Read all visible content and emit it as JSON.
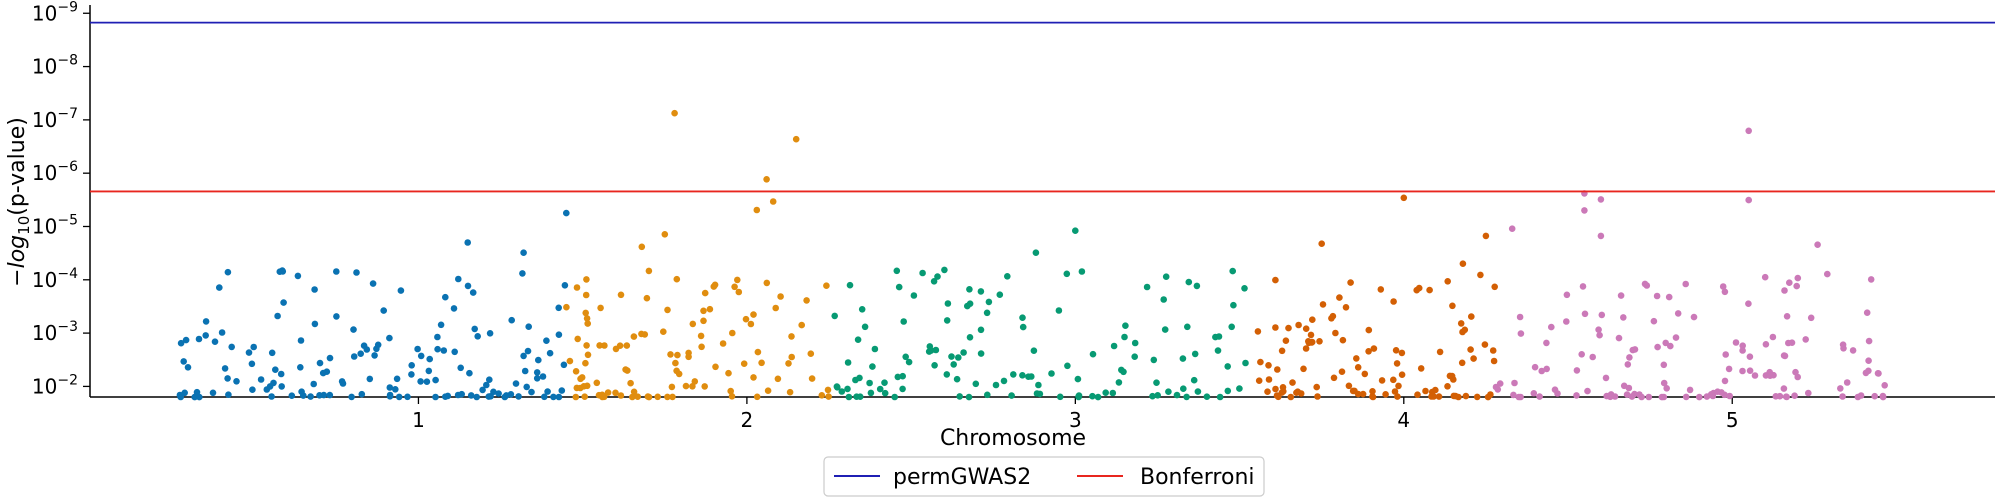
{
  "chart_data": {
    "type": "scatter",
    "title": "",
    "xlabel": "Chromosome",
    "ylabel": "−log10(p-value)",
    "y_scale": "log",
    "y_inverted": true,
    "ylim": [
      0.0158,
      7e-10
    ],
    "y_ticks": [
      {
        "value": 1e-09,
        "label": "10^-9"
      },
      {
        "value": 1e-08,
        "label": "10^-8"
      },
      {
        "value": 1e-07,
        "label": "10^-7"
      },
      {
        "value": 1e-06,
        "label": "10^-6"
      },
      {
        "value": 1e-05,
        "label": "10^-5"
      },
      {
        "value": 0.0001,
        "label": "10^-4"
      },
      {
        "value": 0.001,
        "label": "10^-3"
      },
      {
        "value": 0.01,
        "label": "10^-2"
      }
    ],
    "x_ticks": [
      {
        "value": 1,
        "label": "1"
      },
      {
        "value": 2,
        "label": "2"
      },
      {
        "value": 3,
        "label": "3"
      },
      {
        "value": 4,
        "label": "4"
      },
      {
        "value": 5,
        "label": "5"
      }
    ],
    "threshold_lines": [
      {
        "name": "permGWAS2",
        "value": 1.5e-09,
        "color": "#1f1fb4"
      },
      {
        "name": "Bonferroni",
        "value": 2.2e-06,
        "color": "#e8261f"
      }
    ],
    "legend": {
      "position": "bottom-center",
      "entries": [
        "permGWAS2",
        "Bonferroni"
      ]
    },
    "series_colors": [
      "#0a72b2",
      "#e08d0f",
      "#079a73",
      "#d35f04",
      "#cb79b8"
    ],
    "series": [
      {
        "chromosome": 1,
        "color": "#0a72b2",
        "x_range": [
          0.25,
          1.45
        ],
        "n_points": 150,
        "seed": 11,
        "highlights": [
          {
            "x": 1.45,
            "p": 5.6e-06
          },
          {
            "x": 1.15,
            "p": 2e-05
          },
          {
            "x": 1.32,
            "p": 3.1e-05
          },
          {
            "x": 0.75,
            "p": 7e-05
          },
          {
            "x": 0.42,
            "p": 7.2e-05
          }
        ]
      },
      {
        "chromosome": 2,
        "color": "#e08d0f",
        "x_range": [
          1.45,
          2.25
        ],
        "n_points": 110,
        "seed": 23,
        "highlights": [
          {
            "x": 1.78,
            "p": 7.5e-08
          },
          {
            "x": 2.15,
            "p": 2.3e-07
          },
          {
            "x": 2.06,
            "p": 1.3e-06
          },
          {
            "x": 2.08,
            "p": 3.4e-06
          },
          {
            "x": 2.03,
            "p": 4.9e-06
          },
          {
            "x": 1.75,
            "p": 1.4e-05
          },
          {
            "x": 1.68,
            "p": 2.4e-05
          }
        ]
      },
      {
        "chromosome": 3,
        "color": "#079a73",
        "x_range": [
          2.25,
          3.55
        ],
        "n_points": 130,
        "seed": 37,
        "highlights": [
          {
            "x": 3.0,
            "p": 1.2e-05
          },
          {
            "x": 2.88,
            "p": 3.1e-05
          },
          {
            "x": 3.02,
            "p": 7e-05
          },
          {
            "x": 3.37,
            "p": 0.00013
          }
        ]
      },
      {
        "chromosome": 4,
        "color": "#d35f04",
        "x_range": [
          3.55,
          4.28
        ],
        "n_points": 110,
        "seed": 53,
        "highlights": [
          {
            "x": 4.0,
            "p": 2.9e-06
          },
          {
            "x": 3.75,
            "p": 2.1e-05
          },
          {
            "x": 4.25,
            "p": 1.5e-05
          },
          {
            "x": 4.18,
            "p": 5e-05
          }
        ]
      },
      {
        "chromosome": 5,
        "color": "#cb79b8",
        "x_range": [
          4.28,
          5.48
        ],
        "n_points": 140,
        "seed": 71,
        "highlights": [
          {
            "x": 5.05,
            "p": 1.6e-07
          },
          {
            "x": 4.55,
            "p": 2.4e-06
          },
          {
            "x": 4.6,
            "p": 3.1e-06
          },
          {
            "x": 5.05,
            "p": 3.2e-06
          },
          {
            "x": 4.55,
            "p": 5e-06
          },
          {
            "x": 4.6,
            "p": 1.5e-05
          },
          {
            "x": 5.26,
            "p": 2.2e-05
          },
          {
            "x": 4.33,
            "p": 1.1e-05
          }
        ]
      }
    ]
  }
}
